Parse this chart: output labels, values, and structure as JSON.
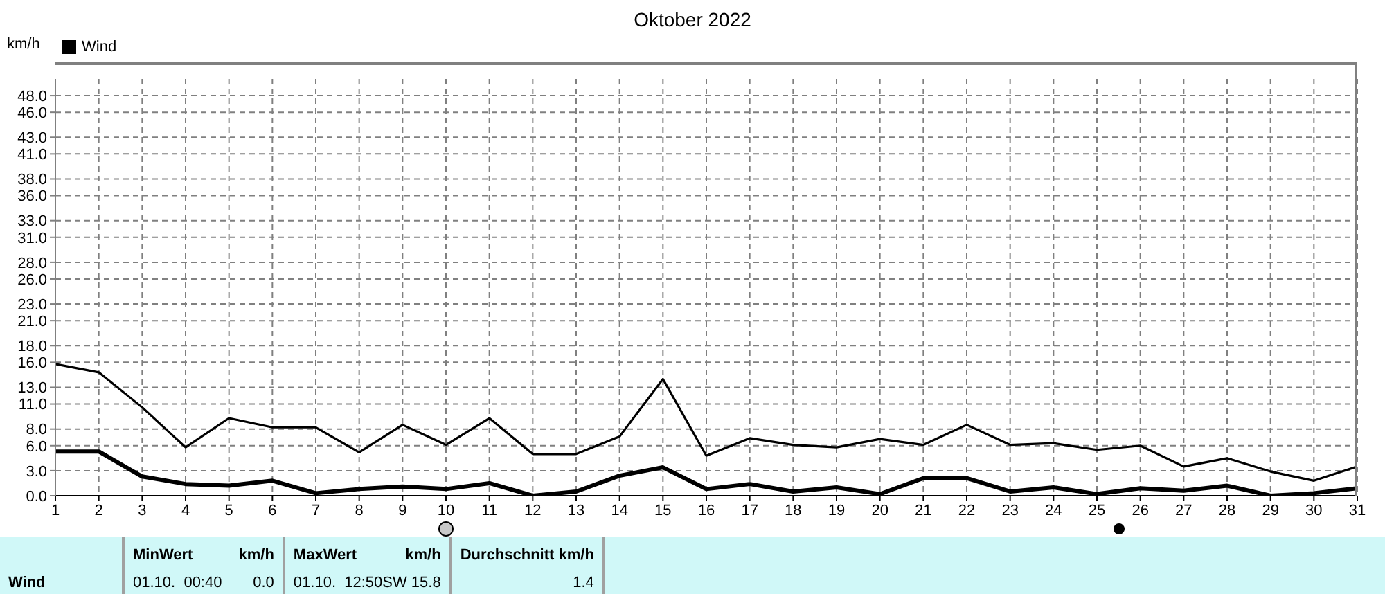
{
  "chart_data": {
    "type": "line",
    "title": "Oktober 2022",
    "ylabel": "km/h",
    "legend": "top left",
    "grid": true,
    "marker": "none",
    "line_style": "solid",
    "x": [
      1,
      2,
      3,
      4,
      5,
      6,
      7,
      8,
      9,
      10,
      11,
      12,
      13,
      14,
      15,
      16,
      17,
      18,
      19,
      20,
      21,
      22,
      23,
      24,
      25,
      26,
      27,
      28,
      29,
      30,
      31
    ],
    "xlim": [
      1,
      31
    ],
    "xticks": [
      1,
      2,
      3,
      4,
      5,
      6,
      7,
      8,
      9,
      10,
      11,
      12,
      13,
      14,
      15,
      16,
      17,
      18,
      19,
      20,
      21,
      22,
      23,
      24,
      25,
      26,
      27,
      28,
      29,
      30,
      31
    ],
    "ylim": [
      0,
      50
    ],
    "yticks": [
      {
        "value": 0,
        "label": "0.0"
      },
      {
        "value": 3,
        "label": "3.0"
      },
      {
        "value": 6,
        "label": "6.0"
      },
      {
        "value": 8,
        "label": "8.0"
      },
      {
        "value": 11,
        "label": "11.0"
      },
      {
        "value": 13,
        "label": "13.0"
      },
      {
        "value": 16,
        "label": "16.0"
      },
      {
        "value": 18,
        "label": "18.0"
      },
      {
        "value": 21,
        "label": "21.0"
      },
      {
        "value": 23,
        "label": "23.0"
      },
      {
        "value": 26,
        "label": "26.0"
      },
      {
        "value": 28,
        "label": "28.0"
      },
      {
        "value": 31,
        "label": "31.0"
      },
      {
        "value": 33,
        "label": "33.0"
      },
      {
        "value": 36,
        "label": "36.0"
      },
      {
        "value": 38,
        "label": "38.0"
      },
      {
        "value": 41,
        "label": "41.0"
      },
      {
        "value": 43,
        "label": "43.0"
      },
      {
        "value": 46,
        "label": "46.0"
      },
      {
        "value": 48,
        "label": "48.0"
      }
    ],
    "series": [
      {
        "color": "#000000",
        "values": [
          15.8,
          14.8,
          10.6,
          5.8,
          9.3,
          8.2,
          8.2,
          5.2,
          8.5,
          6.1,
          9.3,
          5.0,
          5.0,
          7.1,
          14.0,
          4.8,
          6.9,
          6.1,
          5.8,
          6.8,
          6.1,
          8.5,
          6.1,
          6.3,
          5.5,
          6.0,
          3.5,
          4.5,
          2.9,
          1.8,
          3.5
        ]
      },
      {
        "name": "Wind",
        "color": "#000000",
        "values": [
          5.3,
          5.3,
          2.3,
          1.4,
          1.2,
          1.8,
          0.3,
          0.8,
          1.1,
          0.8,
          1.5,
          0.0,
          0.5,
          2.4,
          3.4,
          0.8,
          1.4,
          0.5,
          1.0,
          0.2,
          2.1,
          2.1,
          0.5,
          1.0,
          0.2,
          0.9,
          0.6,
          1.2,
          0.0,
          0.3,
          0.9
        ]
      }
    ],
    "annotations": [
      "Wind",
      "MinWert",
      "km/h",
      "01.10.  00:40",
      "0.0",
      "MaxWert",
      "km/h",
      "01.10.  12:50SW 15.8",
      "Durchschnitt km/h",
      "1.4"
    ]
  }
}
